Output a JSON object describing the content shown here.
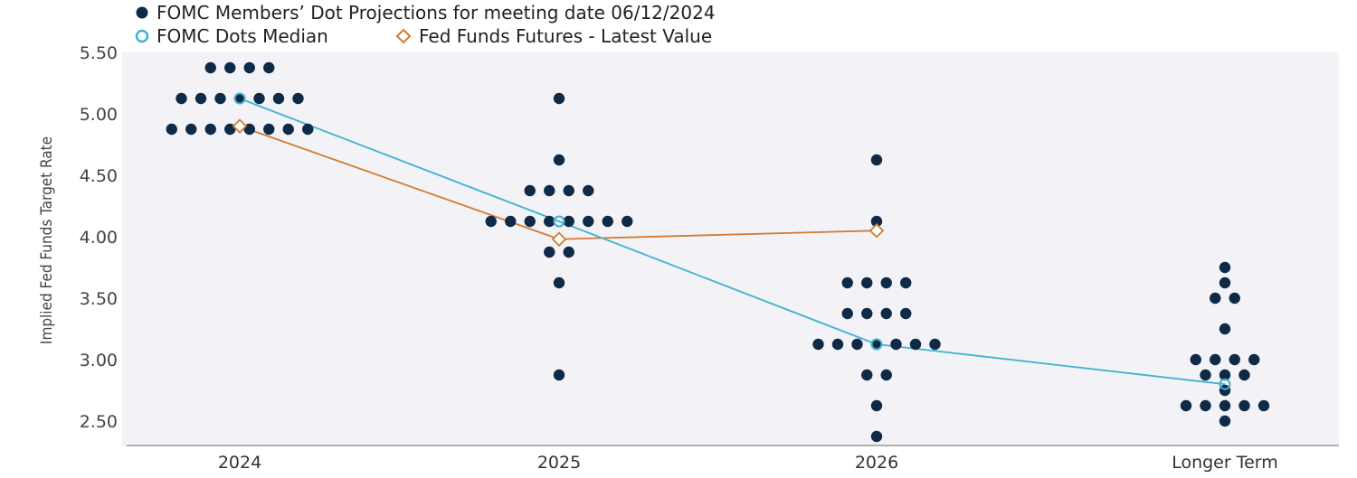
{
  "chart_data": {
    "type": "scatter",
    "title": "",
    "ylabel": "Implied Fed Funds Target Rate",
    "xlabel": "",
    "ylim": [
      2.35,
      5.5
    ],
    "yticks": [
      "5.50",
      "5.00",
      "4.50",
      "4.00",
      "3.50",
      "3.00",
      "2.50"
    ],
    "ytick_values": [
      5.5,
      5.0,
      4.5,
      4.0,
      3.5,
      3.0,
      2.5
    ],
    "categories": [
      "2024",
      "2025",
      "2026",
      "Longer Term"
    ],
    "legend": {
      "placement": "top-left",
      "entries": [
        {
          "label": "FOMC Members’ Dot Projections for meeting date 06/12/2024",
          "marker": "dot"
        },
        {
          "label": "FOMC Dots Median",
          "marker": "circle"
        },
        {
          "label": "Fed Funds Futures - Latest Value",
          "marker": "diamond"
        }
      ]
    },
    "colors": {
      "dots": "#0f2a47",
      "median": "#3fb2d1",
      "futures": "#d27a33",
      "plot_bg": "#f3f2f6",
      "axis": "#9a9a9a"
    },
    "grid": false,
    "series": [
      {
        "name": "FOMC Members’ Dot Projections for meeting date 06/12/2024",
        "kind": "dots",
        "groups": [
          {
            "category": "2024",
            "rows": [
              {
                "value": 5.375,
                "count": 4
              },
              {
                "value": 5.125,
                "count": 7
              },
              {
                "value": 4.875,
                "count": 8
              }
            ]
          },
          {
            "category": "2025",
            "rows": [
              {
                "value": 5.125,
                "count": 1
              },
              {
                "value": 4.625,
                "count": 1
              },
              {
                "value": 4.375,
                "count": 4
              },
              {
                "value": 4.125,
                "count": 8
              },
              {
                "value": 3.875,
                "count": 2
              },
              {
                "value": 3.625,
                "count": 1
              },
              {
                "value": 2.875,
                "count": 1
              }
            ]
          },
          {
            "category": "2026",
            "rows": [
              {
                "value": 4.625,
                "count": 1
              },
              {
                "value": 4.125,
                "count": 1
              },
              {
                "value": 3.625,
                "count": 4
              },
              {
                "value": 3.375,
                "count": 4
              },
              {
                "value": 3.125,
                "count": 7
              },
              {
                "value": 2.875,
                "count": 2
              },
              {
                "value": 2.625,
                "count": 1
              },
              {
                "value": 2.375,
                "count": 1
              }
            ]
          },
          {
            "category": "Longer Term",
            "rows": [
              {
                "value": 3.75,
                "count": 1
              },
              {
                "value": 3.625,
                "count": 1
              },
              {
                "value": 3.5,
                "count": 2
              },
              {
                "value": 3.25,
                "count": 1
              },
              {
                "value": 3.0,
                "count": 4
              },
              {
                "value": 2.875,
                "count": 3
              },
              {
                "value": 2.75,
                "count": 1
              },
              {
                "value": 2.625,
                "count": 5
              },
              {
                "value": 2.5,
                "count": 1
              }
            ]
          }
        ]
      },
      {
        "name": "FOMC Dots Median",
        "kind": "line-circle",
        "values": [
          5.125,
          4.125,
          3.125,
          2.8
        ]
      },
      {
        "name": "Fed Funds Futures - Latest Value",
        "kind": "line-diamond",
        "values": [
          4.9,
          3.98,
          4.05,
          null
        ]
      }
    ]
  }
}
